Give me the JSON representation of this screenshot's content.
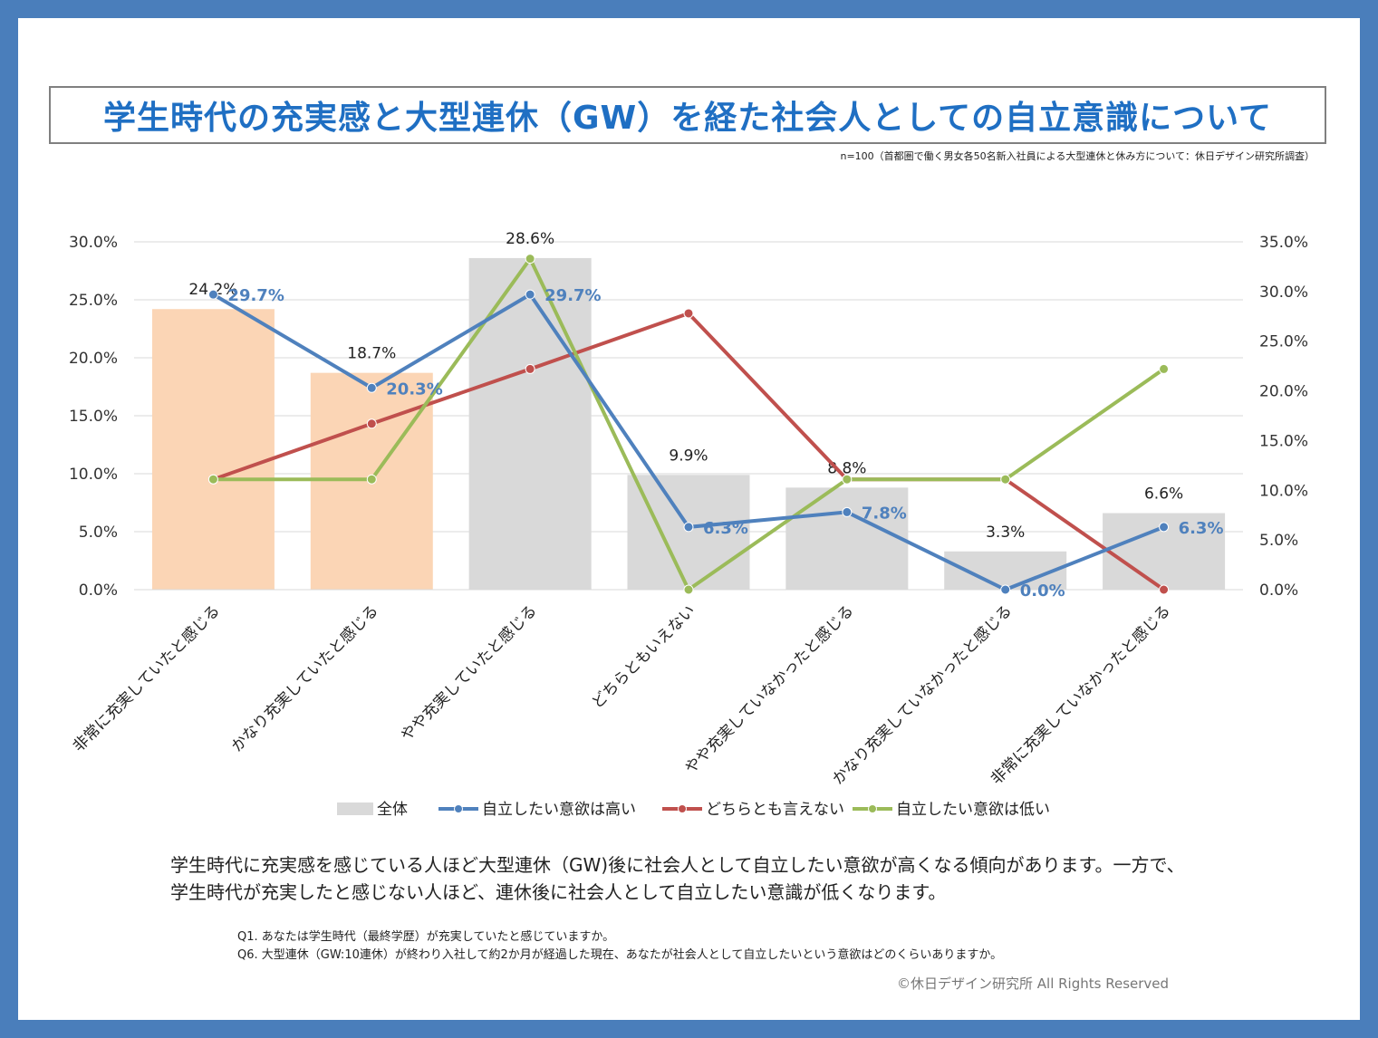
{
  "title": "学生時代の充実感と大型連休（GW）を経た社会人としての自立意識について",
  "source_note": "n=100（首都圏で働く男女各50名新入社員による大型連休と休み方について：休日デザイン研究所調査）",
  "summary": "学生時代に充実感を感じている人ほど大型連休（GW)後に社会人として自立したい意欲が高くなる傾向があります。一方で、学生時代が充実したと感じない人ほど、連休後に社会人として自立したい意識が低くなります。",
  "questions": [
    "Q1.  あなたは学生時代（最終学歴）が充実していたと感じていますか。",
    "Q6.  大型連休（GW:10連休）が終わり入社して約2か月が経過した現在、あなたが社会人として自立したいという意欲はどのくらいありますか。"
  ],
  "copyright": "©休日デザイン研究所  All Rights Reserved",
  "chart_data": {
    "type": "bar",
    "categories": [
      "非常に充実していたと感じる",
      "かなり充実していたと感じる",
      "やや充実していたと感じる",
      "どちらともいえない",
      "やや充実していなかったと感じる",
      "かなり充実していなかったと感じる",
      "非常に充実していなかったと感じる"
    ],
    "y_left": {
      "min": 0,
      "max": 30,
      "step": 5,
      "tick_labels": [
        "0.0%",
        "5.0%",
        "10.0%",
        "15.0%",
        "20.0%",
        "25.0%",
        "30.0%"
      ]
    },
    "y_right": {
      "min": 0,
      "max": 35,
      "step": 5,
      "tick_labels": [
        "0.0%",
        "5.0%",
        "10.0%",
        "15.0%",
        "20.0%",
        "25.0%",
        "30.0%",
        "35.0%"
      ]
    },
    "grid": true,
    "legend_position": "bottom",
    "bar_series": {
      "name": "全体",
      "axis": "left",
      "values": [
        24.2,
        18.7,
        28.6,
        9.9,
        8.8,
        3.3,
        6.6
      ],
      "labels": [
        "24.2%",
        "18.7%",
        "28.6%",
        "9.9%",
        "8.8%",
        "3.3%",
        "6.6%"
      ],
      "colors": [
        "#fbd5b5",
        "#fbd5b5",
        "#d9d9d9",
        "#d9d9d9",
        "#d9d9d9",
        "#d9d9d9",
        "#d9d9d9"
      ],
      "legend_color": "#d9d9d9"
    },
    "line_series": [
      {
        "name": "自立したい意欲は高い",
        "axis": "right",
        "color": "#4f81bd",
        "values": [
          29.7,
          20.3,
          29.7,
          6.3,
          7.8,
          0.0,
          6.3
        ],
        "labels": [
          "29.7%",
          "20.3%",
          "29.7%",
          "6.3%",
          "7.8%",
          "0.0%",
          "6.3%"
        ]
      },
      {
        "name": "どちらとも言えない",
        "axis": "right",
        "color": "#c0504d",
        "values": [
          11.1,
          16.7,
          22.2,
          27.8,
          11.1,
          11.1,
          0.0
        ]
      },
      {
        "name": "自立したい意欲は低い",
        "axis": "right",
        "color": "#9bbb59",
        "values": [
          11.1,
          11.1,
          33.3,
          0.0,
          11.1,
          11.1,
          22.2
        ]
      }
    ]
  }
}
